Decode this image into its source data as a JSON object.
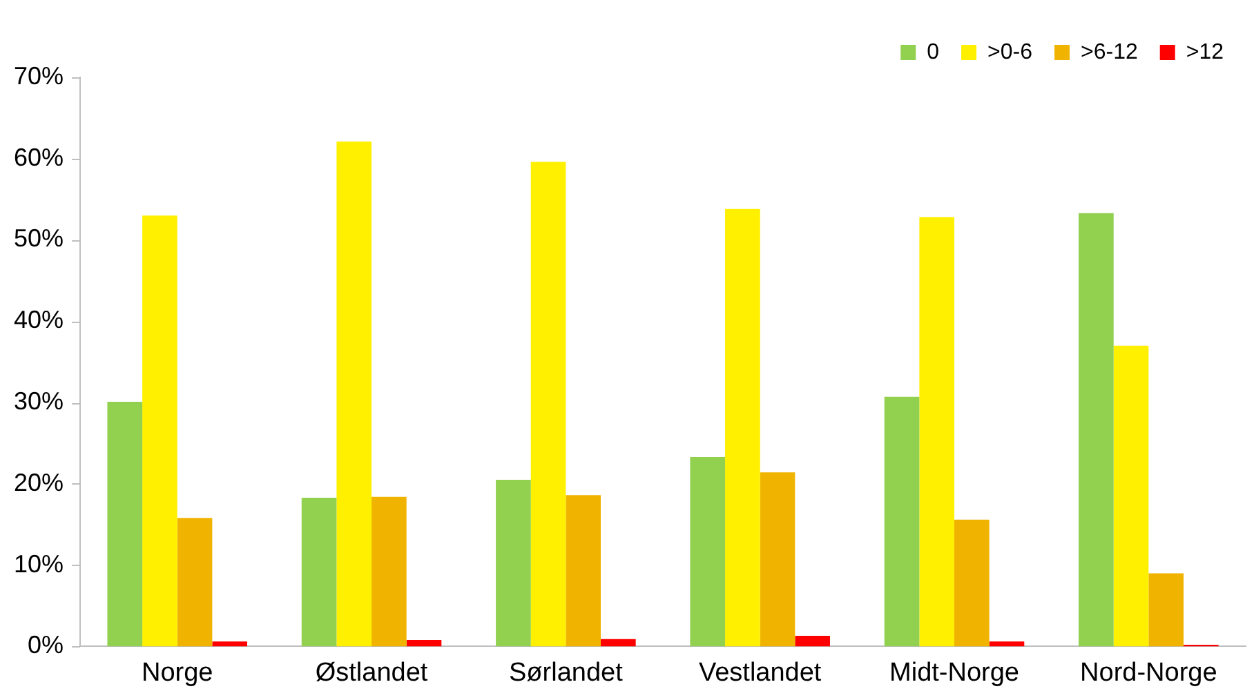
{
  "chart_data": {
    "type": "bar",
    "categories": [
      "Norge",
      "Østlandet",
      "Sørlandet",
      "Vestlandet",
      "Midt-Norge",
      "Nord-Norge"
    ],
    "series": [
      {
        "name": "0",
        "color": "#92d050",
        "values": [
          30.1,
          18.3,
          20.5,
          23.3,
          30.7,
          53.3
        ]
      },
      {
        "name": ">0-6",
        "color": "#fff000",
        "values": [
          53.0,
          62.1,
          59.6,
          53.8,
          52.8,
          37.0
        ]
      },
      {
        "name": ">6-12",
        "color": "#f0b400",
        "values": [
          15.8,
          18.4,
          18.6,
          21.4,
          15.6,
          9.0
        ]
      },
      {
        "name": ">12",
        "color": "#ff0000",
        "values": [
          0.6,
          0.8,
          0.9,
          1.3,
          0.6,
          0.2
        ]
      }
    ],
    "ylim": [
      0,
      70
    ],
    "yticks": [
      {
        "value": 0,
        "label": "0%"
      },
      {
        "value": 10,
        "label": "10%"
      },
      {
        "value": 20,
        "label": "20%"
      },
      {
        "value": 30,
        "label": "30%"
      },
      {
        "value": 40,
        "label": "40%"
      },
      {
        "value": 50,
        "label": "50%"
      },
      {
        "value": 60,
        "label": "60%"
      },
      {
        "value": 70,
        "label": "70%"
      }
    ],
    "grid": false,
    "legend": "top right"
  }
}
